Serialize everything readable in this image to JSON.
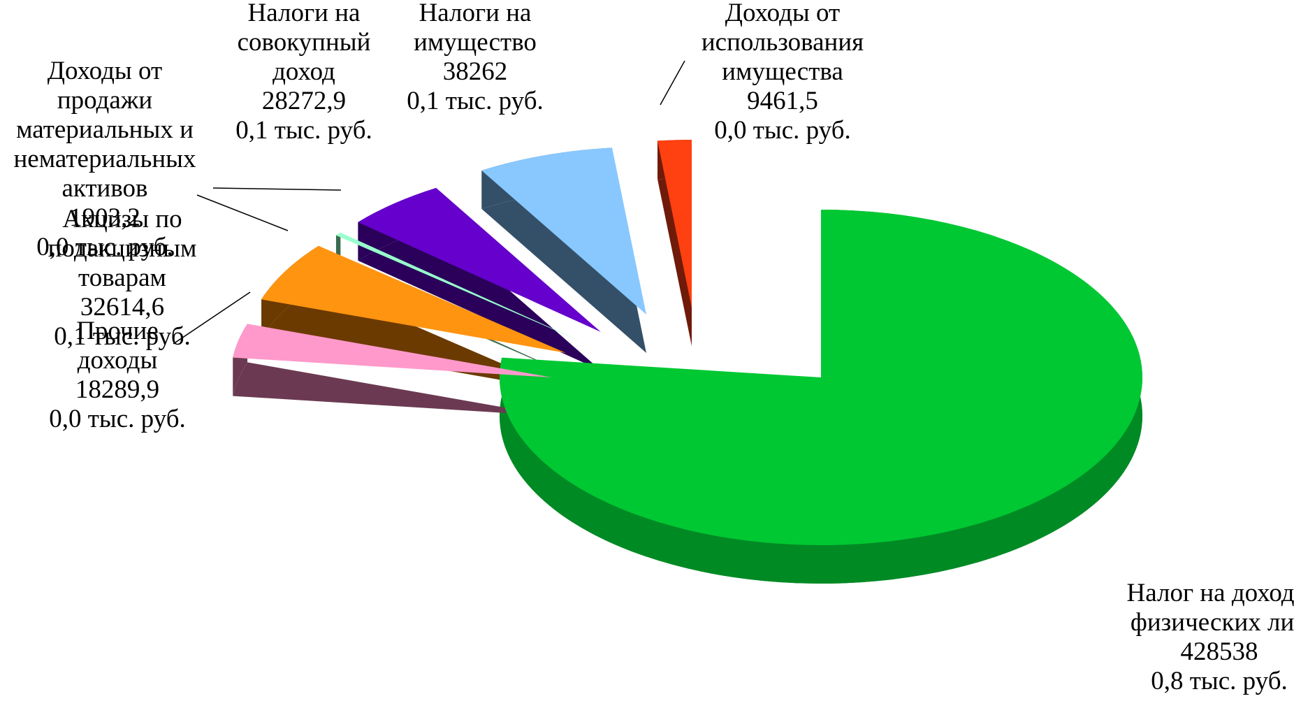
{
  "chart_data": {
    "type": "pie",
    "style": "3d-exploded",
    "legend": "none",
    "slices": [
      {
        "name": "Налог на доходы физических лиц",
        "value": 428538,
        "value_label": "428538",
        "share_label": "0,8 тыс. руб.",
        "label_lines": [
          "Налог на доходы",
          "физических лиц",
          "428538",
          "0,8 тыс. руб."
        ],
        "color": "#00C832",
        "side_color": "#008A24"
      },
      {
        "name": "Прочие доходы",
        "value": 18289.9,
        "value_label": "18289,9",
        "share_label": "0,0 тыс. руб.",
        "label_lines": [
          "Прочие",
          "доходы",
          "18289,9",
          "0,0 тыс. руб."
        ],
        "color": "#FF99CC",
        "side_color": "#6B3A52"
      },
      {
        "name": "Акцизы по подакцизным товарам",
        "value": 32614.6,
        "value_label": "32614,6",
        "share_label": "0,1 тыс. руб.",
        "label_lines": [
          "Акцизы по",
          "подакцизным",
          "товарам",
          "32614,6",
          "0,1 тыс. руб."
        ],
        "color": "#FF9410",
        "side_color": "#6B3A00"
      },
      {
        "name": "Доходы от продажи материальных и нематериальных активов",
        "value": 1903.2,
        "value_label": "1903,2",
        "share_label": "0,0 тыс. руб.",
        "label_lines": [
          "Доходы от",
          "продажи",
          "материальных и",
          "нематериальных",
          "активов",
          "1903,2",
          "0,0 тыс. руб."
        ],
        "color": "#99FFCC",
        "side_color": "#3A6B50"
      },
      {
        "name": "Налоги на совокупный доход",
        "value": 28272.9,
        "value_label": "28272,9",
        "share_label": "0,1 тыс. руб.",
        "label_lines": [
          "Налоги на",
          "совокупный",
          "доход",
          "28272,9",
          "0,1 тыс. руб."
        ],
        "color": "#6600CC",
        "side_color": "#2A005A"
      },
      {
        "name": "Налоги на имущество",
        "value": 38262,
        "value_label": "38262",
        "share_label": "0,1 тыс. руб.",
        "label_lines": [
          "Налоги на",
          "имущество",
          "38262",
          "0,1 тыс. руб."
        ],
        "color": "#88C8FF",
        "side_color": "#345068"
      },
      {
        "name": "Доходы от использования имущества",
        "value": 9461.5,
        "value_label": "9461,5",
        "share_label": "0,0 тыс. руб.",
        "label_lines": [
          "Доходы от",
          "использования",
          "имущества",
          "9461,5",
          "0,0 тыс. руб."
        ],
        "color": "#FF4010",
        "side_color": "#701A0A"
      }
    ]
  }
}
